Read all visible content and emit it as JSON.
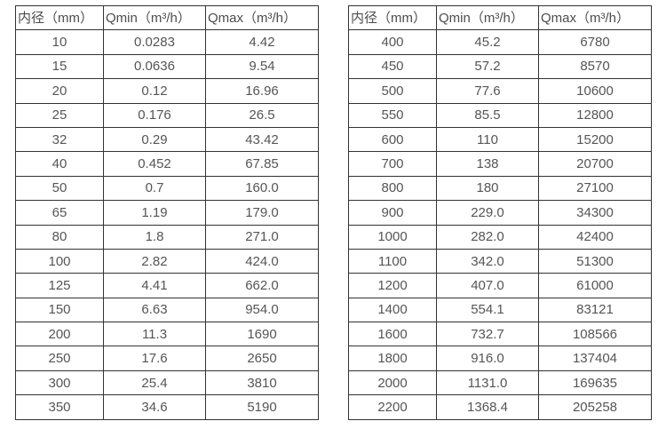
{
  "page": {
    "background": "#ffffff"
  },
  "colors": {
    "border": "#333333",
    "header_text": "#4d4d4d",
    "cell_text": "#555555"
  },
  "tables": [
    {
      "id": "flow-table-small-diameters",
      "headers": [
        "内径（mm）",
        "Qmin（m³/h）",
        "Qmax（m³/h）"
      ],
      "rows": [
        [
          "10",
          "0.0283",
          "4.42"
        ],
        [
          "15",
          "0.0636",
          "9.54"
        ],
        [
          "20",
          "0.12",
          "16.96"
        ],
        [
          "25",
          "0.176",
          "26.5"
        ],
        [
          "32",
          "0.29",
          "43.42"
        ],
        [
          "40",
          "0.452",
          "67.85"
        ],
        [
          "50",
          "0.7",
          "160.0"
        ],
        [
          "65",
          "1.19",
          "179.0"
        ],
        [
          "80",
          "1.8",
          "271.0"
        ],
        [
          "100",
          "2.82",
          "424.0"
        ],
        [
          "125",
          "4.41",
          "662.0"
        ],
        [
          "150",
          "6.63",
          "954.0"
        ],
        [
          "200",
          "11.3",
          "1690"
        ],
        [
          "250",
          "17.6",
          "2650"
        ],
        [
          "300",
          "25.4",
          "3810"
        ],
        [
          "350",
          "34.6",
          "5190"
        ]
      ]
    },
    {
      "id": "flow-table-large-diameters",
      "headers": [
        "内径（mm）",
        "Qmin（m³/h）",
        "Qmax（m³/h）"
      ],
      "rows": [
        [
          "400",
          "45.2",
          "6780"
        ],
        [
          "450",
          "57.2",
          "8570"
        ],
        [
          "500",
          "77.6",
          "10600"
        ],
        [
          "550",
          "85.5",
          "12800"
        ],
        [
          "600",
          "110",
          "15200"
        ],
        [
          "700",
          "138",
          "20700"
        ],
        [
          "800",
          "180",
          "27100"
        ],
        [
          "900",
          "229.0",
          "34300"
        ],
        [
          "1000",
          "282.0",
          "42400"
        ],
        [
          "1100",
          "342.0",
          "51300"
        ],
        [
          "1200",
          "407.0",
          "61000"
        ],
        [
          "1400",
          "554.1",
          "83121"
        ],
        [
          "1600",
          "732.7",
          "108566"
        ],
        [
          "1800",
          "916.0",
          "137404"
        ],
        [
          "2000",
          "1131.0",
          "169635"
        ],
        [
          "2200",
          "1368.4",
          "205258"
        ]
      ]
    }
  ]
}
